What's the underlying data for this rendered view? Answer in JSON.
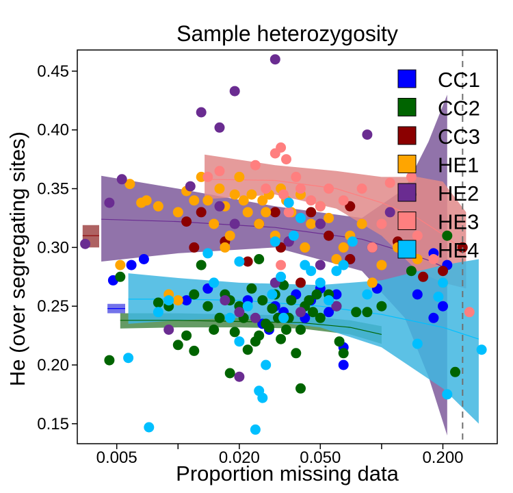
{
  "chart_data": {
    "type": "scatter",
    "title": "Sample heterozygosity",
    "xlabel": "Proportion missing data",
    "ylabel": "He (over segregating sites)",
    "x_scale": "log",
    "xlim": [
      0.0032,
      0.37
    ],
    "ylim": [
      0.133,
      0.468
    ],
    "x_ticks": [
      0.005,
      0.02,
      0.05,
      0.2
    ],
    "x_tick_labels": [
      "0.005",
      "0.020",
      "0.050",
      "0.200"
    ],
    "x_minor_ticks": [
      0.01,
      0.1
    ],
    "y_ticks": [
      0.15,
      0.2,
      0.25,
      0.3,
      0.35,
      0.4,
      0.45
    ],
    "y_tick_labels": [
      "0.15",
      "0.20",
      "0.25",
      "0.30",
      "0.35",
      "0.40",
      "0.45"
    ],
    "reference_line": {
      "x": 0.25,
      "style": "dashed"
    },
    "legend": {
      "position": "top-right"
    },
    "series": [
      {
        "name": "CC1",
        "color": "#0000FF",
        "band_color": "#5B5BE6",
        "fit": {
          "x": [
            0.0045,
            0.0055
          ],
          "y": [
            0.248,
            0.248
          ],
          "lo": [
            0.244,
            0.244
          ],
          "hi": [
            0.252,
            0.252
          ]
        },
        "points": [
          [
            0.0048,
            0.272
          ],
          [
            0.0059,
            0.285
          ],
          [
            0.0068,
            0.29
          ],
          [
            0.011,
            0.255
          ],
          [
            0.014,
            0.265
          ],
          [
            0.022,
            0.255
          ],
          [
            0.026,
            0.235
          ],
          [
            0.03,
            0.25
          ],
          [
            0.033,
            0.245
          ],
          [
            0.038,
            0.26
          ],
          [
            0.042,
            0.24
          ],
          [
            0.045,
            0.255
          ],
          [
            0.05,
            0.265
          ],
          [
            0.055,
            0.245
          ],
          [
            0.06,
            0.26
          ],
          [
            0.065,
            0.215
          ],
          [
            0.07,
            0.29
          ],
          [
            0.065,
            0.2
          ],
          [
            0.095,
            0.265
          ],
          [
            0.15,
            0.26
          ],
          [
            0.18,
            0.24
          ],
          [
            0.21,
            0.285
          ],
          [
            0.2,
            0.25
          ],
          [
            0.18,
            0.295
          ],
          [
            0.028,
            0.23
          ]
        ]
      },
      {
        "name": "CC2",
        "color": "#006400",
        "band_color": "#4A8A4A",
        "fit": {
          "x": [
            0.0052,
            0.01,
            0.02,
            0.04,
            0.07,
            0.1
          ],
          "y": [
            0.238,
            0.238,
            0.237,
            0.236,
            0.232,
            0.226
          ],
          "lo": [
            0.231,
            0.232,
            0.232,
            0.231,
            0.226,
            0.218
          ],
          "hi": [
            0.244,
            0.244,
            0.243,
            0.242,
            0.238,
            0.233
          ]
        },
        "points": [
          [
            0.0046,
            0.204
          ],
          [
            0.0052,
            0.275
          ],
          [
            0.008,
            0.253
          ],
          [
            0.009,
            0.25
          ],
          [
            0.01,
            0.217
          ],
          [
            0.011,
            0.225
          ],
          [
            0.012,
            0.212
          ],
          [
            0.012,
            0.26
          ],
          [
            0.013,
            0.285
          ],
          [
            0.014,
            0.25
          ],
          [
            0.015,
            0.23
          ],
          [
            0.016,
            0.24
          ],
          [
            0.017,
            0.26
          ],
          [
            0.018,
            0.193
          ],
          [
            0.019,
            0.228
          ],
          [
            0.02,
            0.25
          ],
          [
            0.021,
            0.24
          ],
          [
            0.022,
            0.213
          ],
          [
            0.023,
            0.265
          ],
          [
            0.024,
            0.22
          ],
          [
            0.025,
            0.29
          ],
          [
            0.026,
            0.255
          ],
          [
            0.027,
            0.235
          ],
          [
            0.028,
            0.232
          ],
          [
            0.029,
            0.248
          ],
          [
            0.03,
            0.26
          ],
          [
            0.031,
            0.24
          ],
          [
            0.032,
            0.222
          ],
          [
            0.033,
            0.268
          ],
          [
            0.034,
            0.23
          ],
          [
            0.035,
            0.24
          ],
          [
            0.036,
            0.255
          ],
          [
            0.038,
            0.21
          ],
          [
            0.04,
            0.18
          ],
          [
            0.04,
            0.23
          ],
          [
            0.042,
            0.25
          ],
          [
            0.044,
            0.255
          ],
          [
            0.046,
            0.245
          ],
          [
            0.048,
            0.26
          ],
          [
            0.05,
            0.24
          ],
          [
            0.055,
            0.26
          ],
          [
            0.06,
            0.25
          ],
          [
            0.062,
            0.22
          ],
          [
            0.065,
            0.21
          ],
          [
            0.075,
            0.245
          ],
          [
            0.085,
            0.245
          ],
          [
            0.1,
            0.25
          ],
          [
            0.14,
            0.28
          ],
          [
            0.21,
            0.31
          ],
          [
            0.23,
            0.194
          ],
          [
            0.018,
            0.255
          ],
          [
            0.025,
            0.225
          ]
        ]
      },
      {
        "name": "CC3",
        "color": "#8B0000",
        "band_color": "#A04646",
        "fit": {
          "x": [
            0.0034,
            0.0041
          ],
          "y": [
            0.31,
            0.31
          ],
          "lo": [
            0.3,
            0.3
          ],
          "hi": [
            0.319,
            0.319
          ]
        },
        "points": [
          [
            0.011,
            0.322
          ],
          [
            0.012,
            0.3
          ],
          [
            0.013,
            0.33
          ],
          [
            0.017,
            0.305
          ],
          [
            0.022,
            0.288
          ],
          [
            0.025,
            0.32
          ],
          [
            0.03,
            0.33
          ],
          [
            0.032,
            0.3
          ],
          [
            0.035,
            0.305
          ],
          [
            0.04,
            0.27
          ],
          [
            0.045,
            0.33
          ],
          [
            0.05,
            0.32
          ],
          [
            0.055,
            0.31
          ],
          [
            0.07,
            0.335
          ],
          [
            0.07,
            0.29
          ],
          [
            0.09,
            0.3
          ],
          [
            0.12,
            0.305
          ],
          [
            0.16,
            0.275
          ],
          [
            0.2,
            0.28
          ],
          [
            0.25,
            0.3
          ]
        ]
      },
      {
        "name": "HE1",
        "color": "#FFA500",
        "band_color": "#FFA500",
        "fit": null,
        "points": [
          [
            0.0052,
            0.285
          ],
          [
            0.0058,
            0.354
          ],
          [
            0.0066,
            0.338
          ],
          [
            0.007,
            0.34
          ],
          [
            0.008,
            0.335
          ],
          [
            0.009,
            0.26
          ],
          [
            0.01,
            0.255
          ],
          [
            0.01,
            0.33
          ],
          [
            0.011,
            0.348
          ],
          [
            0.012,
            0.34
          ],
          [
            0.013,
            0.36
          ],
          [
            0.014,
            0.34
          ],
          [
            0.015,
            0.32
          ],
          [
            0.016,
            0.35
          ],
          [
            0.017,
            0.335
          ],
          [
            0.018,
            0.31
          ],
          [
            0.019,
            0.345
          ],
          [
            0.02,
            0.36
          ],
          [
            0.021,
            0.34
          ],
          [
            0.022,
            0.33
          ],
          [
            0.023,
            0.345
          ],
          [
            0.025,
            0.32
          ],
          [
            0.026,
            0.34
          ],
          [
            0.027,
            0.33
          ],
          [
            0.028,
            0.345
          ],
          [
            0.03,
            0.31
          ],
          [
            0.032,
            0.35
          ],
          [
            0.034,
            0.34
          ],
          [
            0.036,
            0.33
          ],
          [
            0.04,
            0.345
          ],
          [
            0.042,
            0.3
          ],
          [
            0.045,
            0.32
          ],
          [
            0.05,
            0.335
          ],
          [
            0.055,
            0.325
          ],
          [
            0.06,
            0.29
          ],
          [
            0.065,
            0.3
          ],
          [
            0.07,
            0.31
          ],
          [
            0.08,
            0.32
          ],
          [
            0.09,
            0.27
          ],
          [
            0.1,
            0.285
          ],
          [
            0.12,
            0.3
          ],
          [
            0.15,
            0.29
          ],
          [
            0.2,
            0.27
          ],
          [
            0.017,
            0.3
          ]
        ]
      },
      {
        "name": "HE2",
        "color": "#6A2C91",
        "band_color": "#7E5A9B",
        "fit": {
          "x": [
            0.0042,
            0.01,
            0.03,
            0.08,
            0.13,
            0.17,
            0.21
          ],
          "y": [
            0.324,
            0.322,
            0.317,
            0.307,
            0.296,
            0.289,
            0.282
          ],
          "lo": [
            0.288,
            0.295,
            0.3,
            0.28,
            0.24,
            0.19,
            0.14
          ],
          "hi": [
            0.361,
            0.35,
            0.335,
            0.325,
            0.35,
            0.39,
            0.43
          ]
        },
        "points": [
          [
            0.0035,
            0.303
          ],
          [
            0.0046,
            0.338
          ],
          [
            0.0053,
            0.358
          ],
          [
            0.0115,
            0.352
          ],
          [
            0.013,
            0.415
          ],
          [
            0.016,
            0.402
          ],
          [
            0.019,
            0.433
          ],
          [
            0.03,
            0.46
          ],
          [
            0.016,
            0.335
          ],
          [
            0.019,
            0.32
          ],
          [
            0.017,
            0.255
          ],
          [
            0.02,
            0.245
          ],
          [
            0.024,
            0.24
          ],
          [
            0.03,
            0.27
          ],
          [
            0.035,
            0.305
          ],
          [
            0.05,
            0.285
          ],
          [
            0.06,
            0.25
          ],
          [
            0.085,
            0.396
          ],
          [
            0.11,
            0.33
          ],
          [
            0.14,
            0.345
          ],
          [
            0.02,
            0.19
          ],
          [
            0.05,
            0.32
          ],
          [
            0.009,
            0.23
          ],
          [
            0.04,
            0.245
          ]
        ]
      },
      {
        "name": "HE3",
        "color": "#FF7F7F",
        "band_color": "#E08A8A",
        "fit": {
          "x": [
            0.0135,
            0.03,
            0.06,
            0.1,
            0.15,
            0.2,
            0.26
          ],
          "y": [
            0.358,
            0.357,
            0.35,
            0.338,
            0.325,
            0.311,
            0.296
          ],
          "lo": [
            0.341,
            0.345,
            0.333,
            0.31,
            0.28,
            0.27,
            0.265
          ],
          "hi": [
            0.379,
            0.37,
            0.365,
            0.36,
            0.36,
            0.356,
            0.33
          ]
        },
        "points": [
          [
            0.014,
            0.36
          ],
          [
            0.016,
            0.365
          ],
          [
            0.024,
            0.37
          ],
          [
            0.027,
            0.35
          ],
          [
            0.03,
            0.38
          ],
          [
            0.032,
            0.385
          ],
          [
            0.034,
            0.375
          ],
          [
            0.033,
            0.345
          ],
          [
            0.035,
            0.33
          ],
          [
            0.038,
            0.36
          ],
          [
            0.04,
            0.35
          ],
          [
            0.045,
            0.34
          ],
          [
            0.05,
            0.335
          ],
          [
            0.055,
            0.35
          ],
          [
            0.065,
            0.34
          ],
          [
            0.08,
            0.35
          ],
          [
            0.09,
            0.3
          ],
          [
            0.1,
            0.32
          ],
          [
            0.11,
            0.355
          ],
          [
            0.14,
            0.36
          ],
          [
            0.15,
            0.31
          ],
          [
            0.18,
            0.29
          ],
          [
            0.27,
            0.245
          ],
          [
            0.032,
            0.285
          ]
        ]
      },
      {
        "name": "HE4",
        "color": "#00BFFF",
        "band_color": "#3FB6E0",
        "fit": {
          "x": [
            0.0057,
            0.01,
            0.02,
            0.05,
            0.1,
            0.2,
            0.3
          ],
          "y": [
            0.256,
            0.256,
            0.255,
            0.25,
            0.243,
            0.232,
            0.222
          ],
          "lo": [
            0.235,
            0.238,
            0.24,
            0.232,
            0.215,
            0.18,
            0.15
          ],
          "hi": [
            0.278,
            0.274,
            0.27,
            0.268,
            0.272,
            0.285,
            0.29
          ]
        },
        "points": [
          [
            0.0057,
            0.206
          ],
          [
            0.0072,
            0.147
          ],
          [
            0.008,
            0.245
          ],
          [
            0.009,
            0.255
          ],
          [
            0.014,
            0.295
          ],
          [
            0.015,
            0.27
          ],
          [
            0.018,
            0.24
          ],
          [
            0.02,
            0.288
          ],
          [
            0.022,
            0.25
          ],
          [
            0.024,
            0.145
          ],
          [
            0.025,
            0.178
          ],
          [
            0.026,
            0.172
          ],
          [
            0.027,
            0.2
          ],
          [
            0.029,
            0.26
          ],
          [
            0.03,
            0.305
          ],
          [
            0.032,
            0.275
          ],
          [
            0.033,
            0.24
          ],
          [
            0.035,
            0.338
          ],
          [
            0.037,
            0.31
          ],
          [
            0.04,
            0.325
          ],
          [
            0.042,
            0.285
          ],
          [
            0.045,
            0.28
          ],
          [
            0.05,
            0.27
          ],
          [
            0.055,
            0.255
          ],
          [
            0.06,
            0.28
          ],
          [
            0.065,
            0.285
          ],
          [
            0.072,
            0.305
          ],
          [
            0.085,
            0.26
          ],
          [
            0.15,
            0.218
          ],
          [
            0.19,
            0.258
          ],
          [
            0.2,
            0.27
          ],
          [
            0.21,
            0.175
          ],
          [
            0.31,
            0.213
          ],
          [
            0.02,
            0.22
          ]
        ]
      }
    ]
  }
}
